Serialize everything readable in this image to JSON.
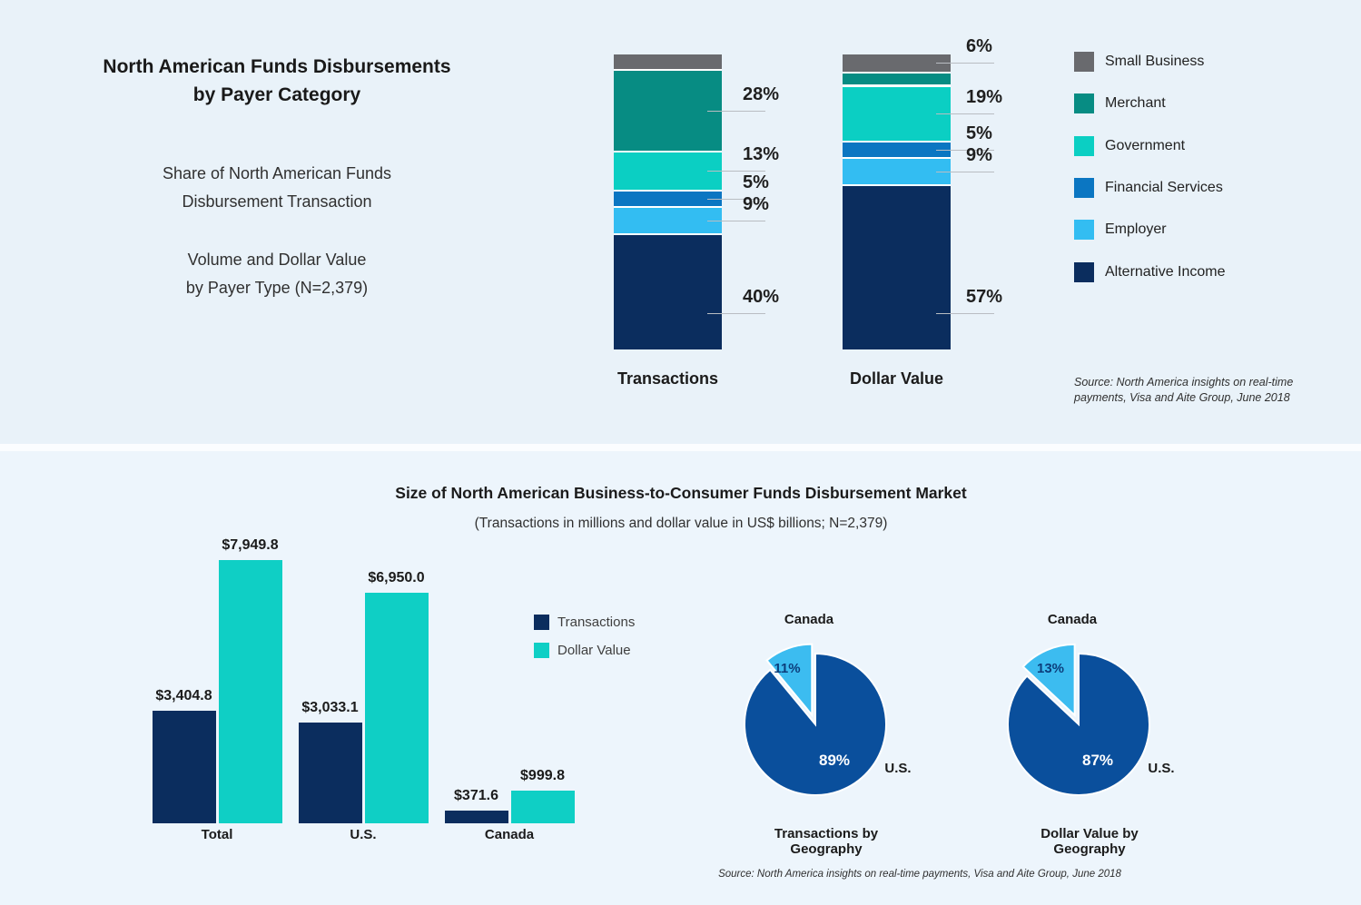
{
  "colors": {
    "background_top": "#e9f2f9",
    "background_bottom": "#edf5fc",
    "small_business": "#696a6e",
    "merchant": "#078c83",
    "government": "#0bcfc3",
    "financial_services": "#0b76c2",
    "employer": "#33bdf2",
    "alternative_income": "#0b2d5e",
    "dollar_value_bar": "#0fcfc5",
    "pie_us": "#0a4f9c",
    "pie_canada": "#3cbcf0",
    "pie_pct_dark_text": "#0c3e7c"
  },
  "top_panel": {
    "title": "North American Funds Disbursements\nby Payer Category",
    "subtitle_share": "Share of North American Funds\nDisbursement Transaction",
    "subtitle_volume": "Volume and Dollar Value\nby Payer Type (N=2,379)",
    "source": "Source: North America insights on real-time\npayments, Visa and Aite Group, June 2018"
  },
  "bottom_panel": {
    "title": "Size of North American Business-to-Consumer Funds Disbursement Market",
    "subtitle": "(Transactions in millions and dollar value in US$ billions; N=2,379)",
    "source": "Source: North America insights on real-time payments, Visa and Aite Group, June 2018"
  },
  "chart_data": [
    {
      "id": "payer-category-stacked",
      "type": "bar",
      "subtype": "stacked",
      "title": "North American Funds Disbursements by Payer Category",
      "categories": [
        "Transactions",
        "Dollar Value"
      ],
      "legend_position": "right",
      "units": "percent of N=2,379",
      "segments": [
        {
          "name": "Small Business",
          "color": "#696a6e",
          "values": [
            5,
            6
          ],
          "labels": [
            "",
            "6%"
          ]
        },
        {
          "name": "Merchant",
          "color": "#078c83",
          "values": [
            28,
            4
          ],
          "labels": [
            "28%",
            ""
          ]
        },
        {
          "name": "Government",
          "color": "#0bcfc3",
          "values": [
            13,
            19
          ],
          "labels": [
            "13%",
            "19%"
          ]
        },
        {
          "name": "Financial Services",
          "color": "#0b76c2",
          "values": [
            5,
            5
          ],
          "labels": [
            "5%",
            "5%"
          ]
        },
        {
          "name": "Employer",
          "color": "#33bdf2",
          "values": [
            9,
            9
          ],
          "labels": [
            "9%",
            "9%"
          ]
        },
        {
          "name": "Alternative Income",
          "color": "#0b2d5e",
          "values": [
            40,
            57
          ],
          "labels": [
            "40%",
            "57%"
          ]
        }
      ]
    },
    {
      "id": "market-size-grouped",
      "type": "bar",
      "subtype": "grouped",
      "title": "Size of North American Business-to-Consumer Funds Disbursement Market",
      "subtitle": "(Transactions in millions and dollar value in US$ billions; N=2,379)",
      "categories": [
        "Total",
        "U.S.",
        "Canada"
      ],
      "ylim": [
        0,
        7949.8
      ],
      "grid": false,
      "series": [
        {
          "name": "Transactions",
          "color": "#0b2d5e",
          "values": [
            3404.8,
            3033.1,
            371.6
          ],
          "labels": [
            "$3,404.8",
            "$3,033.1",
            "$371.6"
          ]
        },
        {
          "name": "Dollar Value",
          "color": "#0fcfc5",
          "values": [
            7949.8,
            6950.0,
            999.8
          ],
          "labels": [
            "$7,949.8",
            "$6,950.0",
            "$999.8"
          ]
        }
      ]
    },
    {
      "id": "transactions-geography-pie",
      "type": "pie",
      "title": "Transactions by Geography",
      "slices": [
        {
          "name": "U.S.",
          "value": 89,
          "label": "89%",
          "color": "#0a4f9c",
          "exploded": false
        },
        {
          "name": "Canada",
          "value": 11,
          "label": "11%",
          "color": "#3cbcf0",
          "exploded": true
        }
      ]
    },
    {
      "id": "dollar-value-geography-pie",
      "type": "pie",
      "title": "Dollar Value by Geography",
      "slices": [
        {
          "name": "U.S.",
          "value": 87,
          "label": "87%",
          "color": "#0a4f9c",
          "exploded": false
        },
        {
          "name": "Canada",
          "value": 13,
          "label": "13%",
          "color": "#3cbcf0",
          "exploded": true
        }
      ]
    }
  ]
}
